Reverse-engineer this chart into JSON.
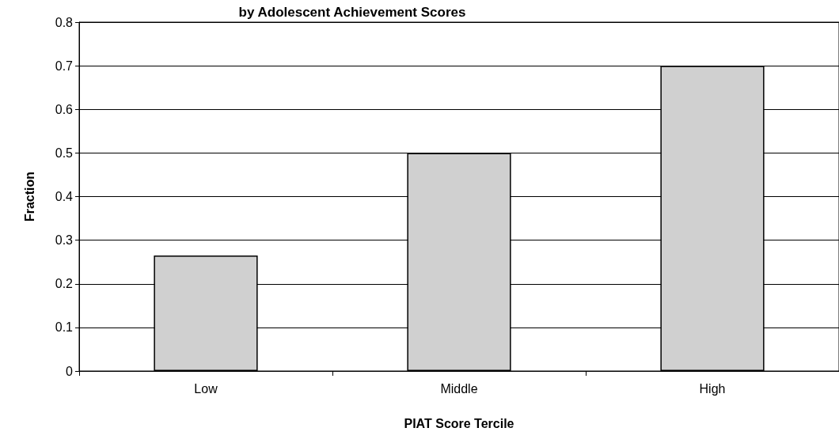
{
  "chart_data": {
    "type": "bar",
    "title": "by Adolescent Achievement Scores",
    "xlabel": "PIAT Score Tercile",
    "ylabel": "Fraction",
    "categories": [
      "Low",
      "Middle",
      "High"
    ],
    "values": [
      0.265,
      0.5,
      0.7
    ],
    "color": "#d0d0d0",
    "ylim": [
      0,
      0.8
    ],
    "yticks": [
      0,
      0.1,
      0.2,
      0.3,
      0.4,
      0.5,
      0.6,
      0.7,
      0.8
    ],
    "grid": "y"
  }
}
